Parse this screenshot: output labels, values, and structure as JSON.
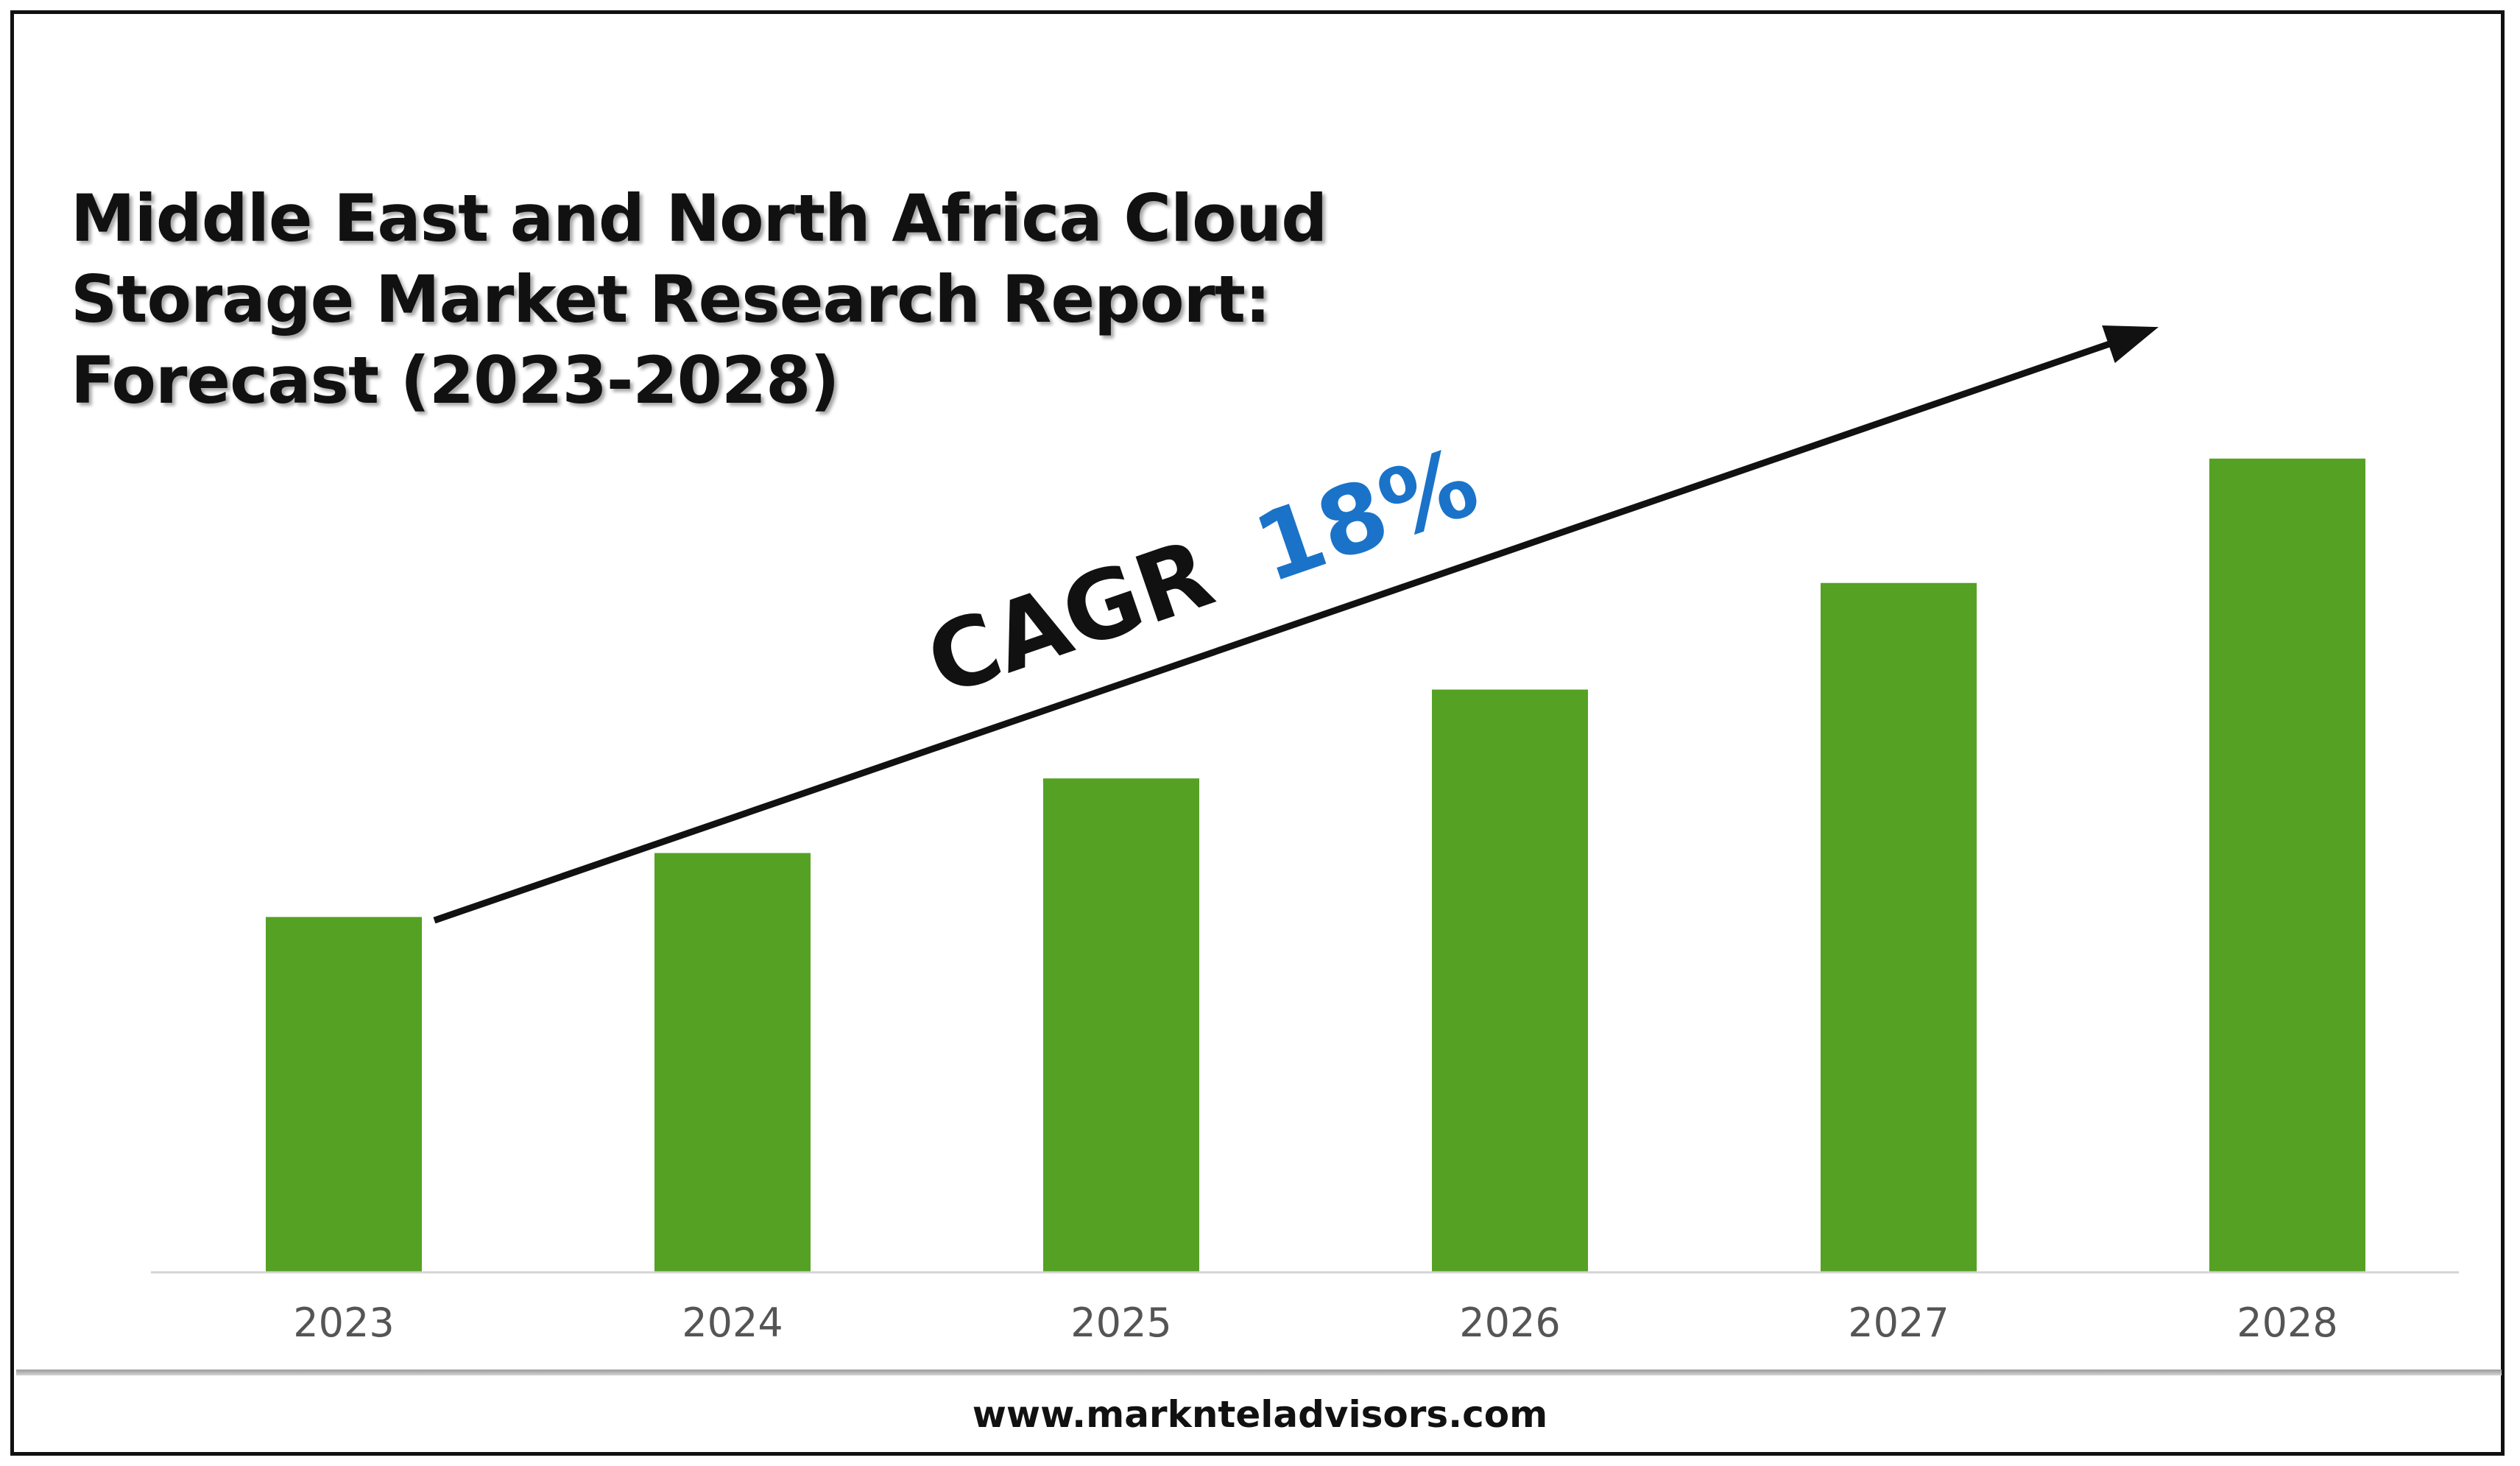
{
  "chart_data": {
    "type": "bar",
    "title_lines": [
      "Middle East and North Africa Cloud",
      "Storage Market Research Report:",
      "Forecast (2023-2028)"
    ],
    "categories": [
      "2023",
      "2024",
      "2025",
      "2026",
      "2027",
      "2028"
    ],
    "values": [
      1.0,
      1.18,
      1.39,
      1.64,
      1.94,
      2.29
    ],
    "ylim": [
      0,
      2.3
    ],
    "grid": false,
    "bar_color": "#55A124",
    "annotation": {
      "label": "CAGR",
      "value": "18%",
      "value_color": "#1A73C8"
    }
  },
  "footer": {
    "website": "www.marknteladvisors.com"
  }
}
